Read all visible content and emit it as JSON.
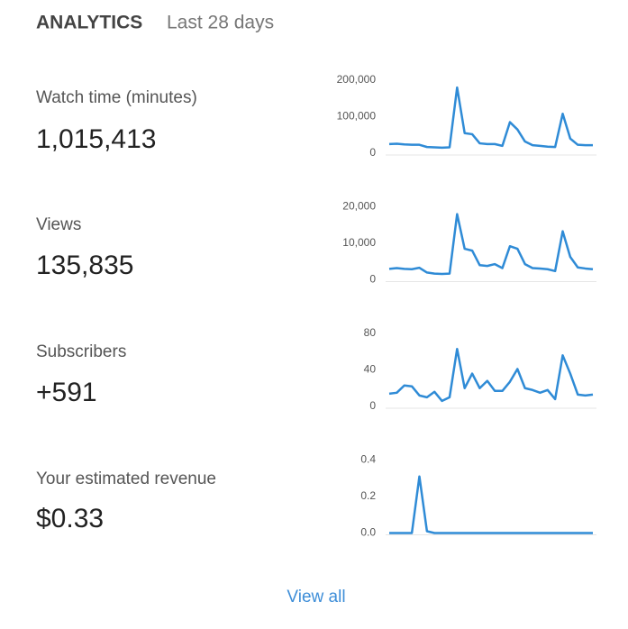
{
  "header": {
    "title": "ANALYTICS",
    "subtitle": "Last 28 days"
  },
  "metrics": [
    {
      "label": "Watch time (minutes)",
      "value": "1,015,413"
    },
    {
      "label": "Views",
      "value": "135,835"
    },
    {
      "label": "Subscribers",
      "value": "+591"
    },
    {
      "label": "Your estimated revenue",
      "value": "$0.33"
    }
  ],
  "chart_data": [
    {
      "type": "line",
      "color": "#2f8bd6",
      "ylim": [
        0,
        200000
      ],
      "yticks": [
        0,
        {
          "value": 100000,
          "label": "100,000"
        },
        {
          "value": 200000,
          "label": "200,000"
        }
      ],
      "values": [
        25000,
        26000,
        24000,
        23000,
        23000,
        17000,
        16000,
        15000,
        16000,
        180000,
        55000,
        52000,
        27000,
        25000,
        25000,
        20000,
        85000,
        65000,
        32000,
        22000,
        20000,
        18000,
        17000,
        108000,
        40000,
        23000,
        22000,
        22000
      ]
    },
    {
      "type": "line",
      "color": "#2f8bd6",
      "ylim": [
        0,
        20000
      ],
      "yticks": [
        0,
        {
          "value": 10000,
          "label": "10,000"
        },
        {
          "value": 20000,
          "label": "20,000"
        }
      ],
      "values": [
        3000,
        3200,
        3000,
        2900,
        3300,
        2000,
        1700,
        1600,
        1700,
        18000,
        8500,
        8000,
        4000,
        3800,
        4300,
        3200,
        9200,
        8500,
        4300,
        3200,
        3100,
        2900,
        2400,
        13300,
        6300,
        3400,
        3100,
        2900
      ]
    },
    {
      "type": "line",
      "color": "#2f8bd6",
      "ylim": [
        0,
        80
      ],
      "yticks": [
        0,
        40,
        80
      ],
      "values": [
        14,
        15,
        23,
        22,
        12,
        10,
        16,
        6,
        10,
        63,
        20,
        36,
        20,
        28,
        17,
        17,
        27,
        41,
        20,
        18,
        15,
        18,
        8,
        56,
        36,
        13,
        12,
        13
      ]
    },
    {
      "type": "line",
      "color": "#2f8bd6",
      "ylim": [
        0,
        0.4
      ],
      "yticks": [
        {
          "value": 0,
          "label": "0.0"
        },
        0.2,
        0.4
      ],
      "values": [
        0,
        0,
        0,
        0,
        0.31,
        0.01,
        0,
        0,
        0,
        0,
        0,
        0,
        0,
        0,
        0,
        0,
        0,
        0,
        0,
        0,
        0,
        0,
        0,
        0,
        0,
        0,
        0,
        0
      ]
    }
  ],
  "link": "View all"
}
